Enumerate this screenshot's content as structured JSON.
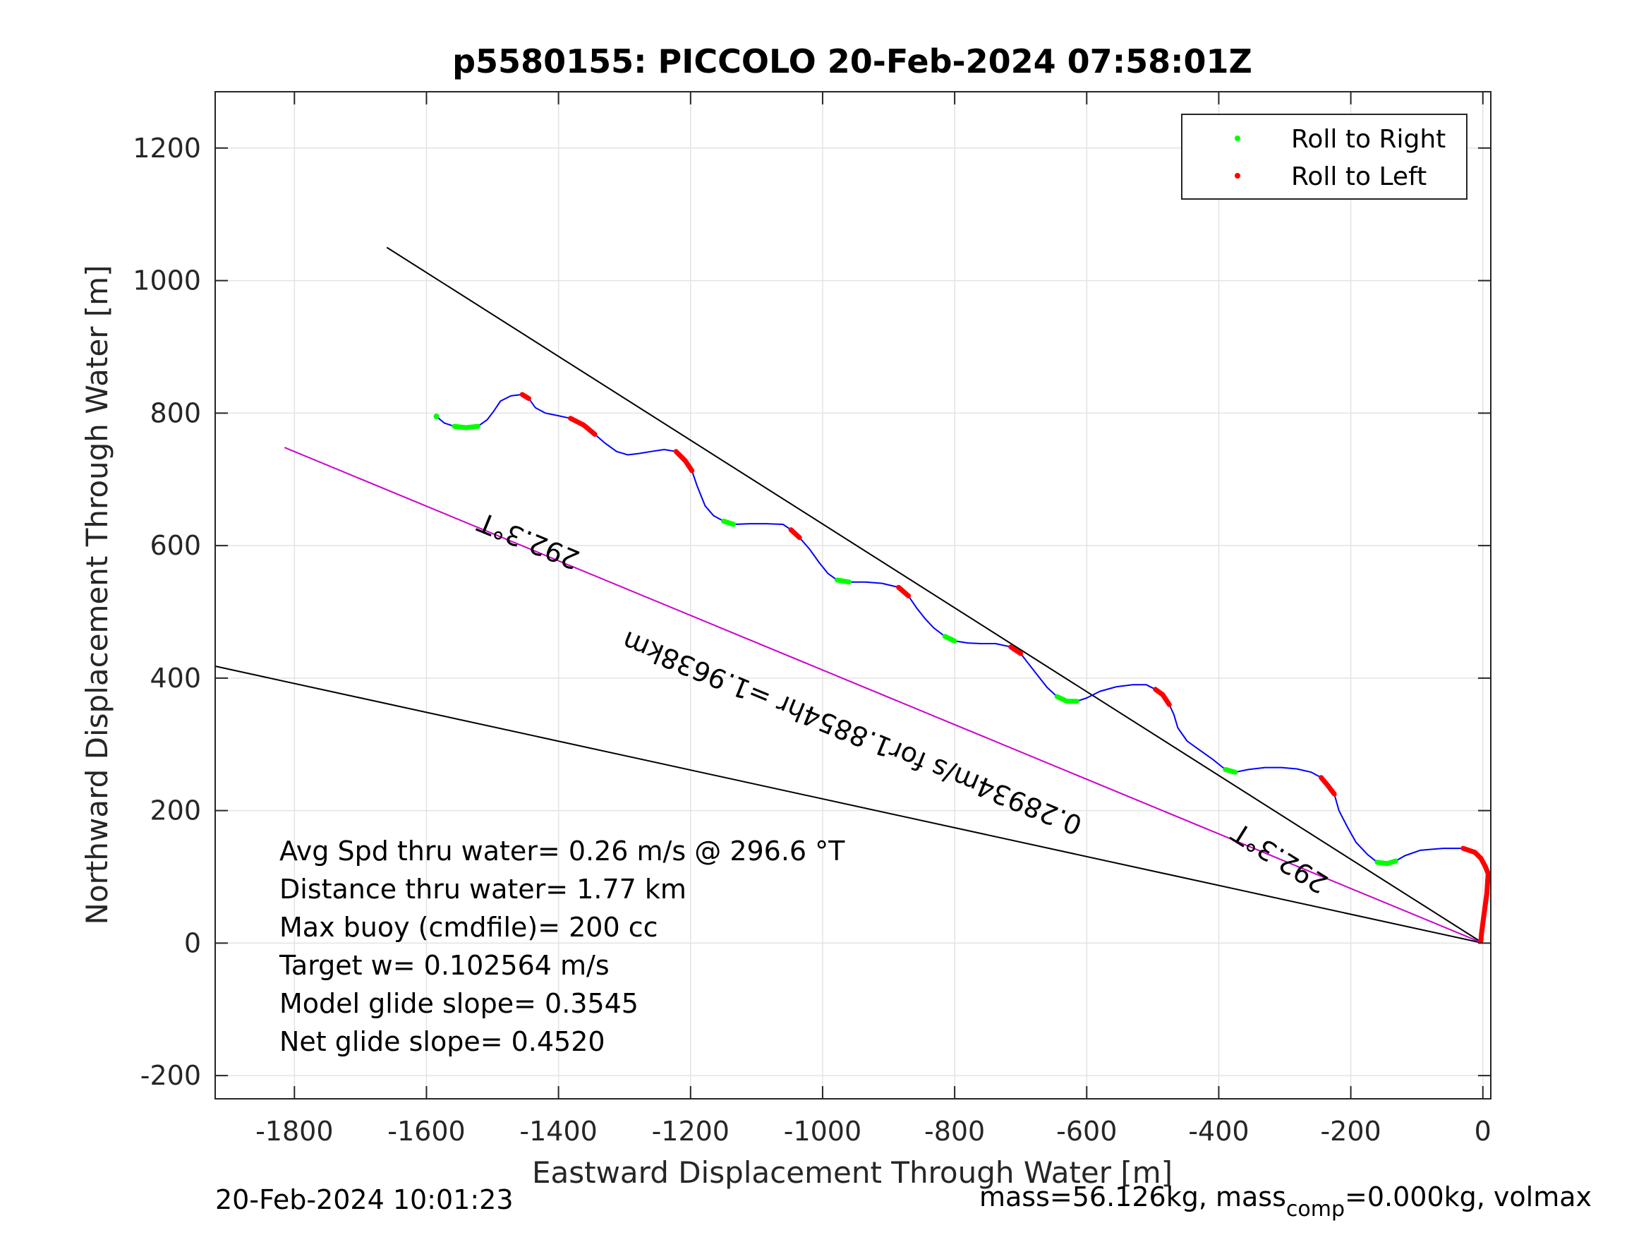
{
  "chart_data": {
    "type": "line",
    "title": "p5580155: PICCOLO 20-Feb-2024 07:58:01Z",
    "xlabel": "Eastward Displacement Through Water [m]",
    "ylabel": "Northward Displacement Through Water [m]",
    "xlim": [
      -1920,
      12
    ],
    "ylim": [
      -235,
      1285
    ],
    "xticks": [
      -1800,
      -1600,
      -1400,
      -1200,
      -1000,
      -800,
      -600,
      -400,
      -200,
      0
    ],
    "xtick_labels": [
      "-1800",
      "-1600",
      "-1400",
      "-1200",
      "-1000",
      "-800",
      "-600",
      "-400",
      "-200",
      "0"
    ],
    "yticks": [
      -200,
      0,
      200,
      400,
      600,
      800,
      1000,
      1200
    ],
    "ytick_labels": [
      "-200",
      "0",
      "200",
      "400",
      "600",
      "800",
      "1000",
      "1200"
    ],
    "grid": true,
    "legend_position": "top-right",
    "legend": [
      {
        "label": "Roll to Right",
        "color": "#00ff00"
      },
      {
        "label": "Roll to Left",
        "color": "#ff0000"
      }
    ],
    "track": {
      "color": "#0000ff",
      "points": [
        [
          -1585,
          795
        ],
        [
          -1573,
          785
        ],
        [
          -1558,
          780
        ],
        [
          -1540,
          778
        ],
        [
          -1522,
          780
        ],
        [
          -1508,
          790
        ],
        [
          -1498,
          803
        ],
        [
          -1488,
          818
        ],
        [
          -1472,
          826
        ],
        [
          -1455,
          828
        ],
        [
          -1445,
          822
        ],
        [
          -1435,
          808
        ],
        [
          -1420,
          800
        ],
        [
          -1400,
          796
        ],
        [
          -1382,
          792
        ],
        [
          -1362,
          782
        ],
        [
          -1345,
          768
        ],
        [
          -1330,
          755
        ],
        [
          -1312,
          742
        ],
        [
          -1295,
          737
        ],
        [
          -1278,
          739
        ],
        [
          -1260,
          742
        ],
        [
          -1240,
          745
        ],
        [
          -1222,
          742
        ],
        [
          -1208,
          728
        ],
        [
          -1198,
          713
        ],
        [
          -1190,
          690
        ],
        [
          -1178,
          660
        ],
        [
          -1165,
          645
        ],
        [
          -1150,
          637
        ],
        [
          -1135,
          632
        ],
        [
          -1110,
          633
        ],
        [
          -1085,
          633
        ],
        [
          -1060,
          632
        ],
        [
          -1048,
          624
        ],
        [
          -1035,
          612
        ],
        [
          -1020,
          595
        ],
        [
          -1005,
          574
        ],
        [
          -992,
          558
        ],
        [
          -978,
          548
        ],
        [
          -960,
          545
        ],
        [
          -935,
          545
        ],
        [
          -910,
          543
        ],
        [
          -885,
          537
        ],
        [
          -870,
          524
        ],
        [
          -857,
          505
        ],
        [
          -845,
          490
        ],
        [
          -832,
          476
        ],
        [
          -815,
          463
        ],
        [
          -800,
          456
        ],
        [
          -780,
          453
        ],
        [
          -760,
          452
        ],
        [
          -738,
          452
        ],
        [
          -715,
          447
        ],
        [
          -700,
          437
        ],
        [
          -690,
          424
        ],
        [
          -675,
          405
        ],
        [
          -660,
          386
        ],
        [
          -645,
          372
        ],
        [
          -630,
          365
        ],
        [
          -615,
          365
        ],
        [
          -600,
          370
        ],
        [
          -580,
          380
        ],
        [
          -555,
          387
        ],
        [
          -530,
          390
        ],
        [
          -510,
          390
        ],
        [
          -496,
          383
        ],
        [
          -485,
          375
        ],
        [
          -475,
          360
        ],
        [
          -468,
          345
        ],
        [
          -462,
          325
        ],
        [
          -448,
          305
        ],
        [
          -430,
          292
        ],
        [
          -410,
          278
        ],
        [
          -390,
          262
        ],
        [
          -375,
          258
        ],
        [
          -355,
          262
        ],
        [
          -330,
          265
        ],
        [
          -305,
          265
        ],
        [
          -282,
          263
        ],
        [
          -260,
          258
        ],
        [
          -245,
          250
        ],
        [
          -235,
          238
        ],
        [
          -225,
          225
        ],
        [
          -218,
          200
        ],
        [
          -205,
          175
        ],
        [
          -192,
          152
        ],
        [
          -175,
          134
        ],
        [
          -160,
          122
        ],
        [
          -145,
          120
        ],
        [
          -132,
          124
        ],
        [
          -118,
          132
        ],
        [
          -95,
          140
        ],
        [
          -60,
          143
        ],
        [
          -30,
          143
        ],
        [
          -12,
          137
        ],
        [
          -3,
          128
        ],
        [
          4,
          115
        ],
        [
          8,
          105
        ],
        [
          6,
          75
        ],
        [
          2,
          45
        ],
        [
          -2,
          15
        ],
        [
          -3,
          3
        ]
      ]
    },
    "roll_right_segments": [
      [
        -1560,
        -1510
      ],
      [
        -1310,
        -1280
      ],
      [
        -1160,
        -1120
      ],
      [
        -985,
        -960
      ],
      [
        -815,
        -790
      ],
      [
        -650,
        -610
      ],
      [
        -395,
        -360
      ],
      [
        -170,
        -125
      ]
    ],
    "roll_left_segments": [
      [
        -1462,
        -1440
      ],
      [
        -1392,
        -1338
      ],
      [
        -1232,
        -1198
      ],
      [
        -1050,
        -1025
      ],
      [
        -890,
        -862
      ],
      [
        -718,
        -695
      ],
      [
        -505,
        -470
      ],
      [
        -255,
        -225
      ],
      [
        -30,
        8
      ]
    ],
    "reference_lines": [
      {
        "points": [
          [
            -1660,
            1050
          ],
          [
            0,
            0
          ]
        ],
        "color": "#000000"
      },
      {
        "points": [
          [
            -1920,
            418
          ],
          [
            0,
            0
          ]
        ],
        "color": "#000000"
      },
      {
        "points": [
          [
            -1815,
            748
          ],
          [
            0,
            0
          ]
        ],
        "color": "#cc00cc"
      }
    ],
    "annotations": [
      {
        "text": "292.3°T",
        "x": -1440,
        "y": 620,
        "rotate": 202.3
      },
      {
        "text": "0.28934m/s for1.8854hr =1.9638km",
        "x": -950,
        "y": 330,
        "rotate": 202.3
      },
      {
        "text": "292.3°T",
        "x": -300,
        "y": 140,
        "rotate": 212
      }
    ],
    "stats_lines": [
      "Avg Spd thru water=  0.26 m/s @ 296.6 °T",
      "Distance thru water=  1.77 km",
      "Max buoy (cmdfile)= 200 cc",
      "Target w= 0.102564 m/s",
      "Model glide slope= 0.3545",
      "Net glide slope= 0.4520"
    ]
  },
  "footer": {
    "timestamp": "20-Feb-2024 10:01:23",
    "mass_text": "mass=56.126kg, mass",
    "mass_sub": "comp",
    "mass_rest": "=0.000kg, volmax"
  }
}
